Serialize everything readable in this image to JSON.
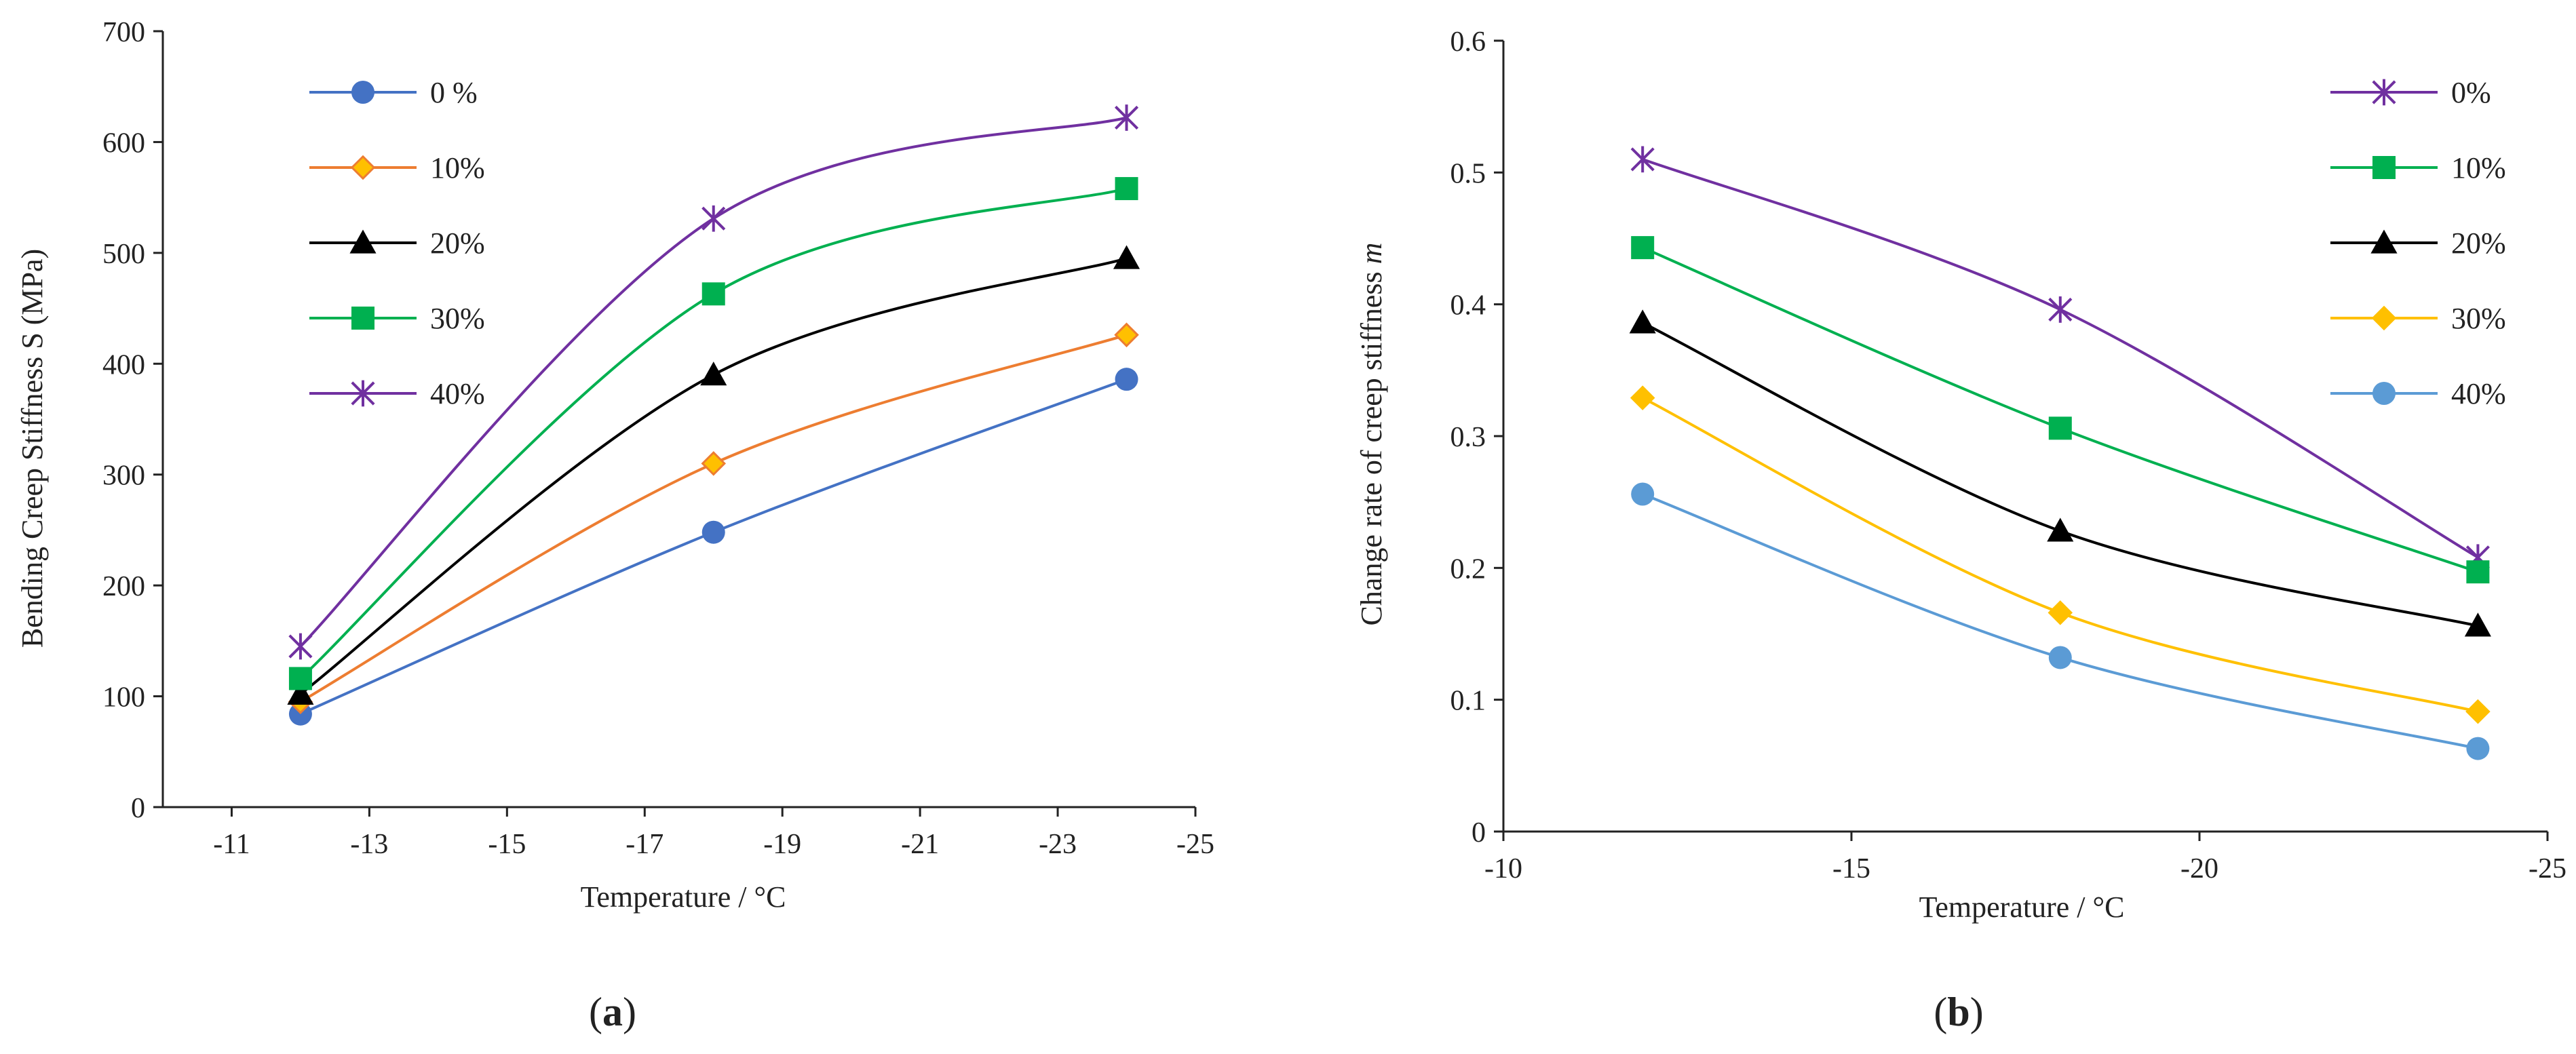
{
  "chart_data": [
    {
      "type": "line",
      "panel_label": "a",
      "xlabel": "Temperature / °C",
      "ylabel": "Bending Creep Stiffness S (MPa)",
      "xlim": [
        -10,
        -25
      ],
      "ylim": [
        0,
        700
      ],
      "x_ticks": [
        -11,
        -13,
        -15,
        -17,
        -19,
        -21,
        -23,
        -25
      ],
      "y_ticks": [
        0,
        100,
        200,
        300,
        400,
        500,
        600,
        700
      ],
      "grid": false,
      "legend_position": "top-left",
      "x": [
        -12,
        -18,
        -24
      ],
      "series": [
        {
          "name": "0 %",
          "values": [
            84,
            248,
            386
          ],
          "color": "#4472c4",
          "marker": "circle"
        },
        {
          "name": "10%",
          "values": [
            95,
            310,
            426
          ],
          "color": "#ed7d31",
          "marker": "diamond"
        },
        {
          "name": "20%",
          "values": [
            102,
            390,
            495
          ],
          "color": "#000000",
          "marker": "triangle"
        },
        {
          "name": "30%",
          "values": [
            116,
            463,
            558
          ],
          "color": "#00b050",
          "marker": "square"
        },
        {
          "name": "40%",
          "values": [
            145,
            531,
            622
          ],
          "color": "#7030a0",
          "marker": "star"
        }
      ]
    },
    {
      "type": "line",
      "panel_label": "b",
      "xlabel": "Temperature / °C",
      "ylabel": "Change rate of creep stiffness",
      "ylabel_italic": "m",
      "xlim": [
        -10,
        -25
      ],
      "ylim": [
        0,
        0.6
      ],
      "x_ticks": [
        -10,
        -15,
        -20,
        -25
      ],
      "y_ticks": [
        0,
        0.1,
        0.2,
        0.3,
        0.4,
        0.5,
        0.6
      ],
      "grid": false,
      "legend_position": "top-right",
      "x": [
        -12,
        -18,
        -24
      ],
      "series": [
        {
          "name": "0%",
          "values": [
            0.51,
            0.396,
            0.208
          ],
          "color": "#7030a0",
          "marker": "star"
        },
        {
          "name": "10%",
          "values": [
            0.443,
            0.306,
            0.197
          ],
          "color": "#00b050",
          "marker": "square"
        },
        {
          "name": "20%",
          "values": [
            0.386,
            0.228,
            0.156
          ],
          "color": "#000000",
          "marker": "triangle"
        },
        {
          "name": "30%",
          "values": [
            0.329,
            0.166,
            0.091
          ],
          "color": "#ffc000",
          "marker": "diamond"
        },
        {
          "name": "40%",
          "values": [
            0.256,
            0.132,
            0.063
          ],
          "color": "#5b9bd5",
          "marker": "circle"
        }
      ]
    }
  ]
}
